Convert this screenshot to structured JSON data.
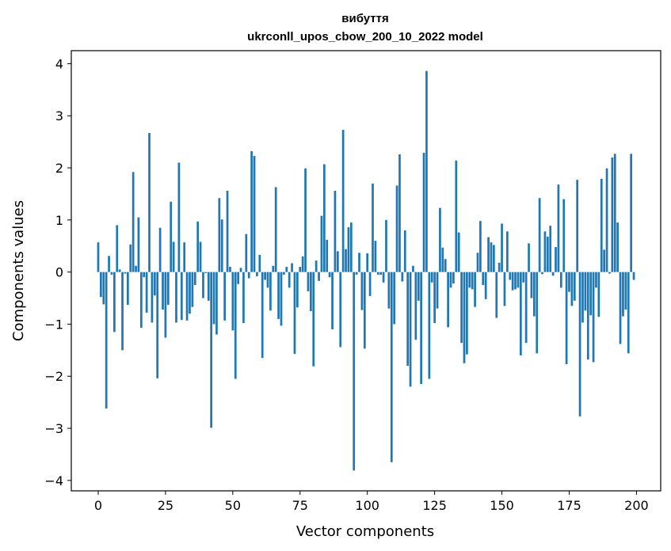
{
  "chart_data": {
    "type": "bar",
    "title": "вибуття",
    "subtitle": "ukrconll_upos_cbow_200_10_2022 model",
    "xlabel": "Vector components",
    "ylabel": "Components values",
    "xlim": [
      -10,
      209
    ],
    "ylim": [
      -4.2,
      4.25
    ],
    "xticks": [
      0,
      25,
      50,
      75,
      100,
      125,
      150,
      175,
      200
    ],
    "xtick_labels": [
      "0",
      "25",
      "50",
      "75",
      "100",
      "125",
      "150",
      "175",
      "200"
    ],
    "yticks": [
      -4,
      -3,
      -2,
      -1,
      0,
      1,
      2,
      3,
      4
    ],
    "ytick_labels": [
      "−4",
      "−3",
      "−2",
      "−1",
      "0",
      "1",
      "2",
      "3",
      "4"
    ],
    "grid": false,
    "color": "#1f77b4",
    "values": [
      0.57,
      -0.48,
      -0.62,
      -2.62,
      0.31,
      -0.05,
      -1.15,
      0.9,
      0.05,
      -1.5,
      -0.03,
      -0.63,
      0.53,
      1.92,
      0.12,
      1.05,
      -1.07,
      -0.1,
      -0.78,
      2.67,
      -0.97,
      -0.45,
      -2.04,
      0.85,
      -0.72,
      -1.26,
      -0.63,
      1.35,
      0.58,
      -0.97,
      2.1,
      -0.92,
      0.57,
      -0.93,
      -0.8,
      -0.67,
      -0.25,
      0.97,
      0.58,
      -0.5,
      -0.02,
      -0.55,
      -2.99,
      -1.0,
      -1.2,
      1.42,
      1.01,
      -0.93,
      1.56,
      0.1,
      -1.12,
      -2.05,
      -0.23,
      0.08,
      -0.98,
      0.73,
      -0.12,
      2.32,
      2.23,
      -0.08,
      0.33,
      -1.65,
      -0.15,
      -0.3,
      -0.74,
      0.12,
      1.63,
      -0.9,
      -1.03,
      -0.05,
      0.1,
      -0.3,
      0.17,
      -1.57,
      -0.68,
      0.1,
      0.3,
      1.99,
      -0.37,
      -0.75,
      -1.81,
      0.22,
      -0.17,
      1.08,
      2.07,
      0.62,
      -0.1,
      -1.1,
      1.56,
      0.4,
      -1.44,
      2.73,
      0.44,
      0.86,
      0.95,
      -3.81,
      -0.05,
      0.37,
      -0.73,
      -1.47,
      0.36,
      -0.46,
      1.7,
      0.6,
      -0.05,
      -0.05,
      -0.2,
      1.0,
      -0.7,
      -3.65,
      -1.0,
      1.66,
      2.26,
      -0.18,
      0.8,
      -1.8,
      -2.2,
      0.12,
      -1.3,
      -0.55,
      -2.15,
      2.29,
      3.86,
      -2.05,
      -0.2,
      -0.98,
      -0.7,
      1.23,
      0.47,
      0.25,
      -1.06,
      -0.3,
      -0.22,
      2.14,
      0.76,
      -1.36,
      -1.75,
      -1.58,
      -0.3,
      -0.33,
      -0.67,
      0.37,
      0.98,
      -0.25,
      -0.52,
      0.67,
      0.57,
      0.52,
      -0.88,
      0.18,
      0.93,
      -0.65,
      0.78,
      -0.15,
      -0.35,
      -0.33,
      -0.3,
      -1.6,
      -0.2,
      -1.36,
      0.55,
      -0.5,
      -0.85,
      -1.56,
      1.42,
      -0.04,
      0.78,
      0.68,
      0.89,
      -0.07,
      0.48,
      1.68,
      -0.3,
      1.4,
      -1.77,
      -0.38,
      -0.65,
      -0.55,
      1.77,
      -2.77,
      -0.97,
      -0.74,
      -1.68,
      -0.83,
      -1.73,
      -0.3,
      -0.86,
      1.79,
      0.43,
      1.99,
      -0.03,
      2.2,
      2.27,
      0.95,
      -1.38,
      -0.85,
      -0.72,
      -1.56,
      2.27,
      -0.15
    ]
  }
}
